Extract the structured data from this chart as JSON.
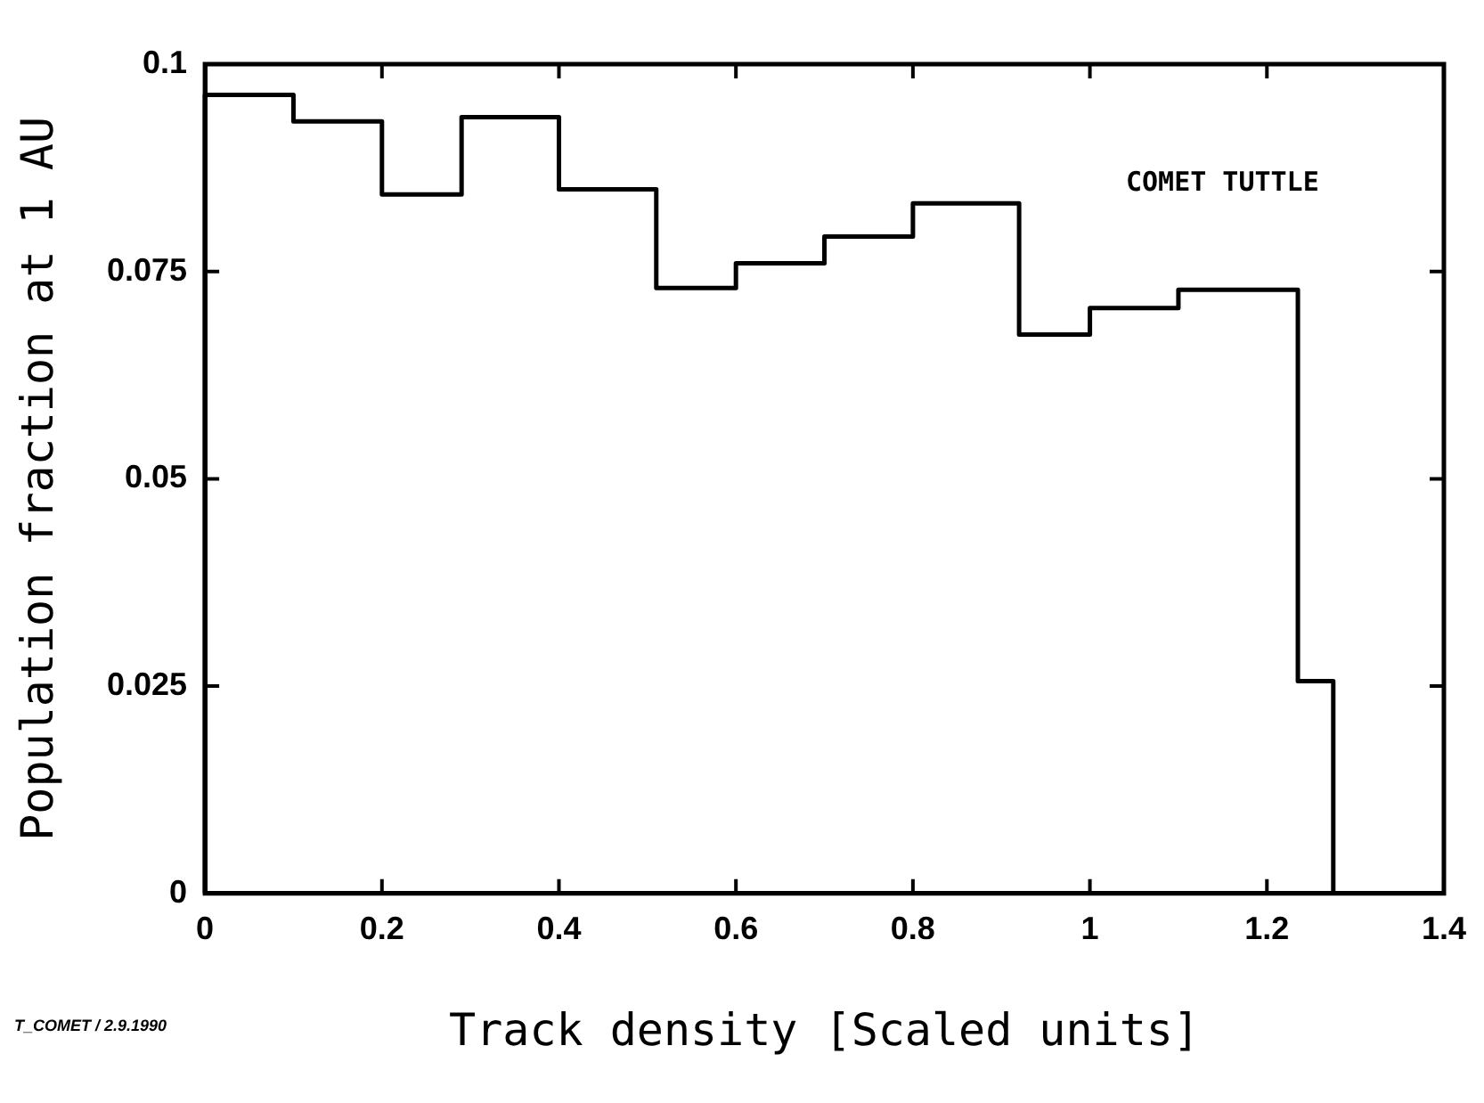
{
  "chart_data": {
    "type": "histogram",
    "bins": [
      0,
      0.1,
      0.2,
      0.29,
      0.4,
      0.51,
      0.6,
      0.7,
      0.8,
      0.92,
      1.0,
      1.1,
      1.235,
      1.275
    ],
    "values": [
      0.0963,
      0.0931,
      0.0843,
      0.0936,
      0.0849,
      0.073,
      0.076,
      0.0792,
      0.0832,
      0.0674,
      0.0706,
      0.0728,
      0.0256
    ],
    "color": "#000000",
    "xlabel": "Track density [Scaled units]",
    "ylabel": "Population fraction at 1 AU",
    "xlim": [
      0,
      1.4
    ],
    "xticks": [
      0,
      0.2,
      0.4,
      0.6,
      0.8,
      1,
      1.2,
      1.4
    ],
    "ylim": [
      0,
      0.1
    ],
    "yticks": [
      0,
      0.025,
      0.05,
      0.075,
      0.1
    ],
    "grid": false,
    "legend": false,
    "annotations": [
      "COMET TUTTLE",
      "T_COMET / 2.9.1990"
    ]
  }
}
